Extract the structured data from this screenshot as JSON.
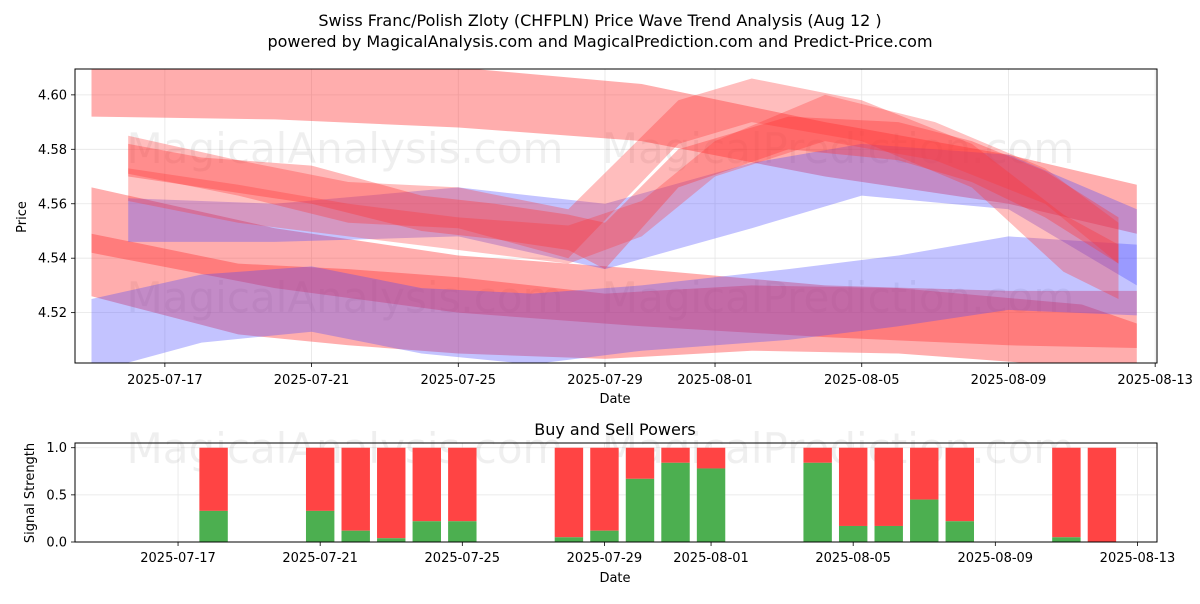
{
  "title": "Swiss Franc/Polish Zloty (CHFPLN) Price Wave Trend Analysis (Aug 12 )",
  "subtitle": "powered by MagicalAnalysis.com and MagicalPrediction.com and Predict-Price.com",
  "watermarks": [
    "MagicalAnalysis.com",
    "MagicalPrediction.com"
  ],
  "colors": {
    "red_wave": "#ff3333",
    "blue_wave": "#4444ff",
    "buy": "#4caf50",
    "sell": "#ff4444",
    "grid": "#e6e6e6"
  },
  "chart_data": [
    {
      "type": "area",
      "name": "price-wave-trend",
      "xlabel": "Date",
      "ylabel": "Price",
      "x_range": [
        "2025-07-15",
        "2025-08-13"
      ],
      "ylim": [
        4.5015,
        4.6095
      ],
      "y_ticks": [
        4.52,
        4.54,
        4.56,
        4.58,
        4.6
      ],
      "y_tick_labels": [
        "4.52",
        "4.54",
        "4.56",
        "4.58",
        "4.60"
      ],
      "x_ticks": [
        "2025-07-17",
        "2025-07-21",
        "2025-07-25",
        "2025-07-29",
        "2025-08-01",
        "2025-08-05",
        "2025-08-09",
        "2025-08-13"
      ],
      "grid": true,
      "bands": [
        {
          "color": "red",
          "opacity": 0.4,
          "start": "2025-07-15",
          "end": "2025-08-12",
          "days": [
            0,
            5,
            10,
            15,
            20,
            25,
            28.5
          ],
          "upper": [
            4.612,
            4.612,
            4.61,
            4.604,
            4.59,
            4.578,
            4.567
          ],
          "lower": [
            4.592,
            4.591,
            4.588,
            4.583,
            4.57,
            4.56,
            4.549
          ]
        },
        {
          "color": "red",
          "opacity": 0.4,
          "start": "2025-07-15",
          "end": "2025-08-12",
          "days": [
            0,
            5,
            10,
            15,
            20,
            25,
            28.5
          ],
          "upper": [
            4.566,
            4.551,
            4.541,
            4.536,
            4.53,
            4.528,
            4.528
          ],
          "lower": [
            4.542,
            4.529,
            4.52,
            4.515,
            4.511,
            4.508,
            4.507
          ]
        },
        {
          "color": "red",
          "opacity": 0.4,
          "start": "2025-07-15",
          "end": "2025-08-12",
          "days": [
            0,
            4,
            7,
            10,
            14,
            18,
            22,
            27,
            28.5
          ],
          "upper": [
            4.549,
            4.538,
            4.536,
            4.533,
            4.527,
            4.53,
            4.529,
            4.523,
            4.516
          ],
          "lower": [
            4.526,
            4.512,
            4.508,
            4.505,
            4.503,
            4.506,
            4.505,
            4.5,
            4.495
          ]
        },
        {
          "color": "blue",
          "opacity": 0.32,
          "start": "2025-07-15",
          "end": "2025-08-12",
          "days": [
            0,
            3,
            6,
            9,
            12,
            15,
            19,
            22,
            25,
            28.5
          ],
          "upper": [
            4.525,
            4.534,
            4.537,
            4.529,
            4.527,
            4.53,
            4.536,
            4.541,
            4.548,
            4.545
          ],
          "lower": [
            4.498,
            4.509,
            4.513,
            4.505,
            4.501,
            4.506,
            4.51,
            4.515,
            4.521,
            4.519
          ]
        },
        {
          "color": "blue",
          "opacity": 0.32,
          "start": "2025-07-16",
          "end": "2025-08-12",
          "days": [
            1,
            5,
            10,
            14,
            18,
            21,
            25,
            28.5
          ],
          "upper": [
            4.562,
            4.56,
            4.566,
            4.56,
            4.575,
            4.582,
            4.578,
            4.558
          ],
          "lower": [
            4.546,
            4.546,
            4.548,
            4.536,
            4.551,
            4.563,
            4.558,
            4.53
          ]
        },
        {
          "color": "red",
          "opacity": 0.35,
          "start": "2025-07-16",
          "end": "2025-08-11",
          "days": [
            1,
            3,
            6,
            9,
            11,
            13,
            14,
            16,
            19,
            22,
            24,
            26,
            28
          ],
          "upper": [
            4.582,
            4.577,
            4.574,
            4.563,
            4.56,
            4.556,
            4.553,
            4.58,
            4.592,
            4.59,
            4.583,
            4.572,
            4.555
          ],
          "lower": [
            4.57,
            4.566,
            4.56,
            4.55,
            4.547,
            4.543,
            4.536,
            4.566,
            4.58,
            4.576,
            4.568,
            4.555,
            4.538
          ]
        },
        {
          "color": "red",
          "opacity": 0.3,
          "start": "2025-07-16",
          "end": "2025-08-11",
          "days": [
            1,
            4,
            7,
            10,
            13,
            15,
            17,
            20,
            23,
            26,
            28
          ],
          "upper": [
            4.573,
            4.567,
            4.56,
            4.555,
            4.552,
            4.561,
            4.583,
            4.6,
            4.59,
            4.573,
            4.553
          ],
          "lower": [
            4.561,
            4.553,
            4.548,
            4.543,
            4.538,
            4.548,
            4.57,
            4.583,
            4.576,
            4.56,
            4.538
          ]
        },
        {
          "color": "red",
          "opacity": 0.32,
          "start": "2025-07-16",
          "end": "2025-08-11",
          "days": [
            1,
            4,
            7,
            10,
            13,
            16,
            18,
            21,
            24,
            26.5,
            28
          ],
          "upper": [
            4.585,
            4.576,
            4.568,
            4.566,
            4.558,
            4.598,
            4.606,
            4.598,
            4.582,
            4.556,
            4.545
          ],
          "lower": [
            4.571,
            4.563,
            4.553,
            4.551,
            4.54,
            4.582,
            4.59,
            4.583,
            4.566,
            4.535,
            4.525
          ]
        }
      ]
    },
    {
      "type": "bar",
      "name": "buy-and-sell-powers",
      "title": "Buy and Sell Powers",
      "xlabel": "Date",
      "ylabel": "Signal Strength",
      "x_range": [
        "2025-07-15",
        "2025-08-13"
      ],
      "ylim": [
        0,
        1.05
      ],
      "y_ticks": [
        0.0,
        0.5,
        1.0
      ],
      "y_tick_labels": [
        "0.0",
        "0.5",
        "1.0"
      ],
      "x_ticks": [
        "2025-07-17",
        "2025-07-21",
        "2025-07-25",
        "2025-07-29",
        "2025-08-01",
        "2025-08-05",
        "2025-08-09",
        "2025-08-13"
      ],
      "grid": true,
      "series": [
        {
          "name": "Buy",
          "color": "#4caf50"
        },
        {
          "name": "Sell",
          "color": "#ff4444"
        }
      ],
      "categories": [
        "2025-07-18",
        "2025-07-21",
        "2025-07-22",
        "2025-07-23",
        "2025-07-24",
        "2025-07-25",
        "2025-07-28",
        "2025-07-29",
        "2025-07-30",
        "2025-07-31",
        "2025-08-01",
        "2025-08-04",
        "2025-08-05",
        "2025-08-06",
        "2025-08-07",
        "2025-08-08",
        "2025-08-11",
        "2025-08-12"
      ],
      "buy_values": [
        0.33,
        0.33,
        0.12,
        0.04,
        0.22,
        0.22,
        0.05,
        0.12,
        0.67,
        0.84,
        0.78,
        0.84,
        0.17,
        0.17,
        0.45,
        0.22,
        0.05,
        0.0
      ]
    }
  ]
}
